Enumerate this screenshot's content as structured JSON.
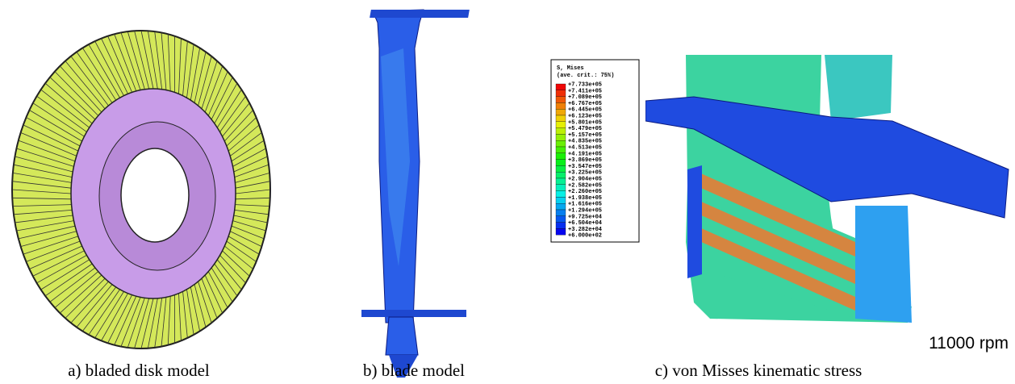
{
  "figure": {
    "captions": [
      "a) bladed disk model",
      "b) blade model",
      "c) von Misses kinematic stress"
    ],
    "speed_label": "11000 rpm",
    "legend": {
      "title": "S, Mises",
      "subtitle": "(ave. crit.: 75%)",
      "levels": [
        "+7.733e+05",
        "+7.411e+05",
        "+7.089e+05",
        "+6.767e+05",
        "+6.445e+05",
        "+6.123e+05",
        "+5.801e+05",
        "+5.479e+05",
        "+5.157e+05",
        "+4.835e+05",
        "+4.513e+05",
        "+4.191e+05",
        "+3.869e+05",
        "+3.547e+05",
        "+3.225e+05",
        "+2.904e+05",
        "+2.582e+05",
        "+2.260e+05",
        "+1.938e+05",
        "+1.616e+05",
        "+1.294e+05",
        "+9.725e+04",
        "+6.504e+04",
        "+3.282e+04",
        "+6.000e+02"
      ]
    }
  }
}
